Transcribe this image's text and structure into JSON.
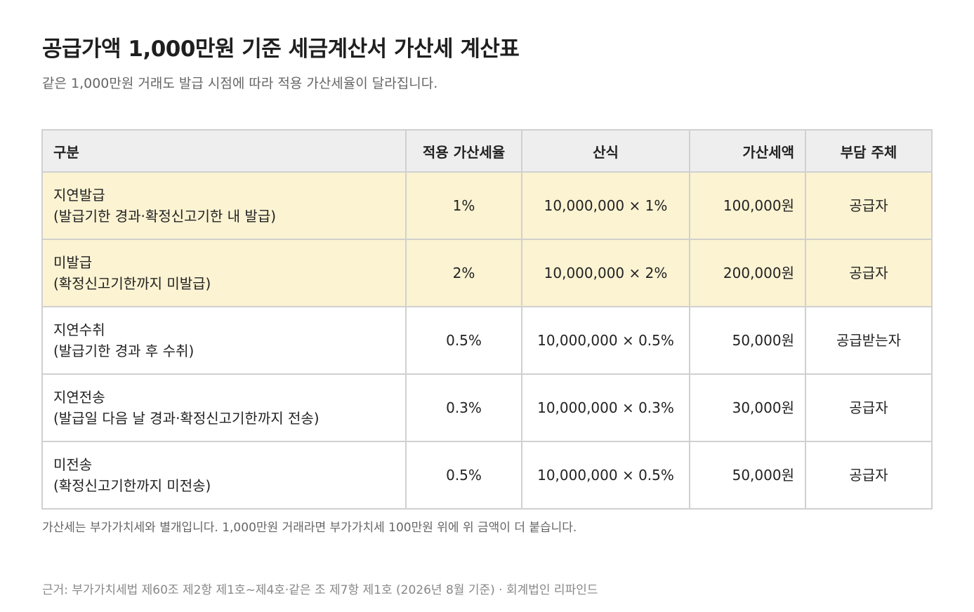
{
  "header": {
    "title": "공급가액 1,000만원 기준 세금계산서 가산세 계산표",
    "subtitle": "같은 1,000만원 거래도 발급 시점에 따라 적용 가산세율이 달라집니다."
  },
  "table": {
    "columns": [
      "구분",
      "적용 가산세율",
      "산식",
      "가산세액",
      "부담 주체"
    ],
    "rows": [
      {
        "name": "지연발급",
        "detail": "(발급기한 경과·확정신고기한 내 발급)",
        "rate": "1%",
        "formula": "10,000,000 × 1%",
        "amount": "100,000원",
        "bearer": "공급자",
        "highlight": true
      },
      {
        "name": "미발급",
        "detail": "(확정신고기한까지 미발급)",
        "rate": "2%",
        "formula": "10,000,000 × 2%",
        "amount": "200,000원",
        "bearer": "공급자",
        "highlight": true
      },
      {
        "name": "지연수취",
        "detail": "(발급기한 경과 후 수취)",
        "rate": "0.5%",
        "formula": "10,000,000 × 0.5%",
        "amount": "50,000원",
        "bearer": "공급받는자",
        "highlight": false
      },
      {
        "name": "지연전송",
        "detail": "(발급일 다음 날 경과·확정신고기한까지 전송)",
        "rate": "0.3%",
        "formula": "10,000,000 × 0.3%",
        "amount": "30,000원",
        "bearer": "공급자",
        "highlight": false
      },
      {
        "name": "미전송",
        "detail": "(확정신고기한까지 미전송)",
        "rate": "0.5%",
        "formula": "10,000,000 × 0.5%",
        "amount": "50,000원",
        "bearer": "공급자",
        "highlight": false
      }
    ]
  },
  "footer": {
    "note": "가산세는 부가가치세와 별개입니다. 1,000만원 거래라면 부가가치세 100만원 위에 위 금액이 더 붙습니다.",
    "source": "근거: 부가가치세법 제60조 제2항 제1호~제4호·같은 조 제7항 제1호 (2026년 8월 기준) · 회계법인 리파인드"
  },
  "colors": {
    "highlight_row": "#fbf3d2",
    "header_row": "#eeeeee",
    "border": "#d0d0d0"
  }
}
